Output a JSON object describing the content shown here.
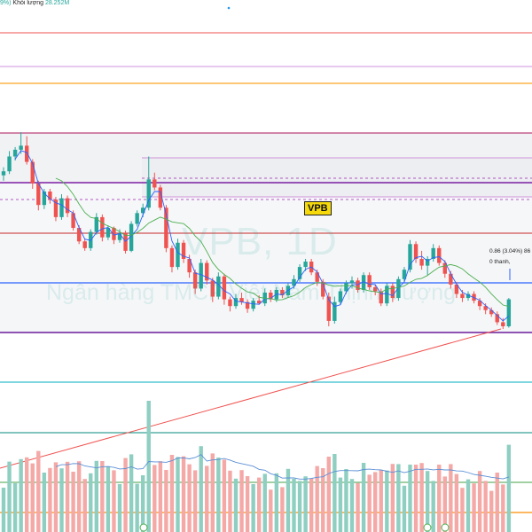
{
  "header": {
    "pct_text": "9%)",
    "volume_label": "Khối lượng",
    "volume_value": "28.252M"
  },
  "watermark": {
    "title": "VPB, 1D",
    "subtitle": "Ngân hàng TMCP Việt Nam Thịnh Vượng"
  },
  "symbol_badge": "VPB",
  "info_box": {
    "line1": "0.86 (3.04%) 86",
    "line2": "0 thanh,"
  },
  "colors": {
    "up": "#26a69a",
    "down": "#ef5350",
    "vol_up": "#8fcfc2",
    "vol_down": "#f4a9a7",
    "ma_short": "#2962ff",
    "ma_long": "#4caf50",
    "vol_ma": "#5b8fd6",
    "trend": "#ef5350"
  },
  "candles": [
    [
      18,
      18.6,
      17.6,
      18.3
    ],
    [
      18.3,
      19.8,
      18.1,
      19.4
    ],
    [
      19.4,
      20.1,
      19.1,
      19.9
    ],
    [
      19.9,
      21.2,
      19.6,
      20.2
    ],
    [
      20.2,
      20.9,
      18.8,
      19.0
    ],
    [
      19.0,
      19.2,
      17.0,
      17.4
    ],
    [
      17.4,
      17.6,
      15.4,
      15.8
    ],
    [
      15.8,
      17.0,
      15.5,
      16.8
    ],
    [
      16.8,
      17.0,
      15.9,
      16.2
    ],
    [
      16.2,
      16.4,
      14.6,
      14.9
    ],
    [
      14.9,
      16.6,
      14.7,
      16.3
    ],
    [
      16.3,
      16.5,
      14.9,
      15.2
    ],
    [
      15.2,
      15.4,
      13.9,
      14.1
    ],
    [
      14.1,
      14.3,
      12.9,
      13.1
    ],
    [
      13.1,
      13.3,
      12.4,
      12.6
    ],
    [
      12.6,
      14.0,
      12.4,
      13.8
    ],
    [
      13.8,
      15.2,
      13.6,
      14.9
    ],
    [
      14.9,
      15.1,
      13.1,
      13.4
    ],
    [
      13.4,
      14.3,
      13.2,
      14.1
    ],
    [
      14.1,
      14.2,
      12.9,
      13.2
    ],
    [
      13.2,
      14.0,
      13.0,
      13.7
    ],
    [
      13.7,
      13.9,
      12.2,
      12.4
    ],
    [
      12.4,
      14.6,
      12.3,
      14.4
    ],
    [
      14.4,
      15.4,
      14.2,
      15.2
    ],
    [
      15.2,
      15.9,
      14.9,
      15.6
    ],
    [
      15.6,
      19.4,
      15.4,
      17.7
    ],
    [
      17.7,
      18.2,
      16.9,
      17.1
    ],
    [
      17.1,
      17.3,
      15.4,
      15.6
    ],
    [
      15.6,
      15.8,
      12.3,
      12.6
    ],
    [
      12.6,
      12.8,
      10.8,
      11.2
    ],
    [
      11.2,
      13.3,
      11.0,
      13.0
    ],
    [
      13.0,
      13.2,
      11.5,
      11.8
    ],
    [
      11.8,
      12.1,
      10.4,
      10.8
    ],
    [
      10.8,
      11.0,
      9.2,
      9.6
    ],
    [
      9.6,
      11.8,
      9.4,
      11.5
    ],
    [
      11.5,
      11.7,
      9.9,
      10.2
    ],
    [
      10.2,
      10.4,
      8.6,
      9.0
    ],
    [
      9.0,
      10.8,
      8.8,
      10.5
    ],
    [
      10.5,
      10.7,
      8.4,
      8.8
    ],
    [
      8.8,
      9.0,
      7.9,
      8.3
    ],
    [
      8.3,
      9.2,
      8.1,
      8.9
    ],
    [
      8.9,
      9.3,
      8.4,
      8.6
    ],
    [
      8.6,
      8.8,
      7.8,
      8.1
    ],
    [
      8.1,
      8.9,
      7.9,
      8.7
    ],
    [
      8.7,
      9.1,
      8.4,
      8.5
    ],
    [
      8.5,
      9.6,
      8.3,
      9.3
    ],
    [
      9.3,
      9.5,
      8.6,
      8.8
    ],
    [
      8.8,
      9.7,
      8.6,
      9.5
    ],
    [
      9.5,
      9.7,
      8.9,
      9.1
    ],
    [
      9.1,
      10.0,
      8.9,
      9.8
    ],
    [
      9.8,
      10.6,
      9.6,
      10.3
    ],
    [
      10.3,
      11.4,
      10.1,
      11.2
    ],
    [
      11.2,
      11.8,
      10.9,
      11.6
    ],
    [
      11.6,
      11.8,
      10.6,
      10.8
    ],
    [
      10.8,
      11.0,
      9.8,
      10.1
    ],
    [
      10.1,
      10.3,
      8.8,
      9.0
    ],
    [
      9.0,
      9.3,
      6.8,
      7.2
    ],
    [
      7.2,
      9.0,
      7.0,
      8.6
    ],
    [
      8.6,
      9.6,
      8.4,
      9.4
    ],
    [
      9.4,
      10.2,
      9.2,
      10.0
    ],
    [
      10.0,
      10.5,
      9.6,
      10.2
    ],
    [
      10.2,
      10.4,
      9.3,
      9.5
    ],
    [
      9.5,
      10.8,
      9.3,
      10.6
    ],
    [
      10.6,
      10.8,
      9.5,
      9.7
    ],
    [
      9.7,
      9.9,
      9.1,
      9.4
    ],
    [
      9.4,
      9.6,
      8.3,
      8.5
    ],
    [
      8.5,
      10.0,
      8.3,
      9.8
    ],
    [
      9.8,
      10.0,
      8.6,
      8.9
    ],
    [
      8.9,
      10.5,
      8.7,
      10.3
    ],
    [
      10.3,
      11.2,
      10.1,
      11.0
    ],
    [
      11.0,
      13.2,
      10.8,
      12.9
    ],
    [
      12.9,
      13.1,
      11.5,
      11.8
    ],
    [
      11.8,
      12.4,
      11.0,
      11.3
    ],
    [
      11.3,
      12.0,
      10.6,
      11.8
    ],
    [
      11.8,
      12.9,
      11.6,
      12.6
    ],
    [
      12.6,
      12.8,
      11.3,
      11.5
    ],
    [
      11.5,
      11.7,
      10.4,
      10.7
    ],
    [
      10.7,
      10.9,
      9.6,
      9.9
    ],
    [
      9.9,
      10.1,
      8.9,
      9.2
    ],
    [
      9.2,
      9.5,
      8.6,
      8.9
    ],
    [
      8.9,
      9.4,
      8.7,
      9.2
    ],
    [
      9.2,
      9.4,
      8.5,
      8.7
    ],
    [
      8.7,
      8.9,
      8.0,
      8.3
    ],
    [
      8.3,
      8.5,
      7.7,
      8.0
    ],
    [
      8.0,
      8.2,
      7.5,
      7.7
    ],
    [
      7.7,
      7.9,
      6.9,
      7.1
    ],
    [
      7.1,
      7.4,
      6.6,
      6.8
    ],
    [
      6.8,
      8.9,
      6.7,
      8.8
    ]
  ]
}
